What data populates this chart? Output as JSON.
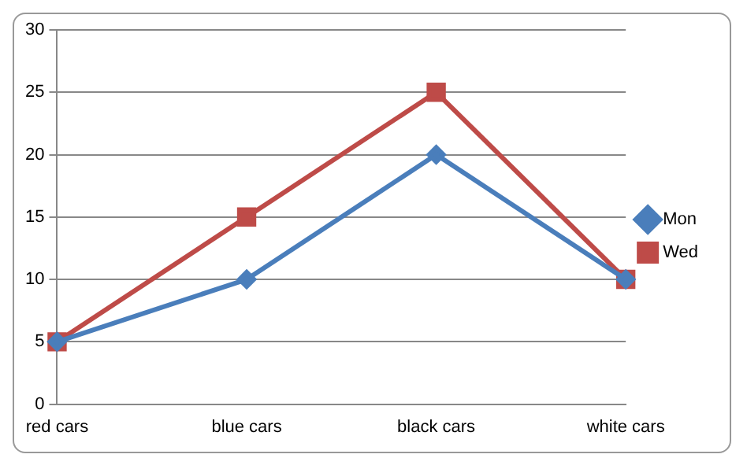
{
  "chart_data": {
    "type": "line",
    "categories": [
      "red cars",
      "blue cars",
      "black cars",
      "white cars"
    ],
    "series": [
      {
        "name": "Mon",
        "color": "#4a7ebb",
        "marker": "diamond",
        "values": [
          5,
          10,
          20,
          10
        ]
      },
      {
        "name": "Wed",
        "color": "#be4b48",
        "marker": "square",
        "values": [
          5,
          15,
          25,
          10
        ]
      }
    ],
    "ylim": [
      0,
      30
    ],
    "yticks": [
      0,
      5,
      10,
      15,
      20,
      25,
      30
    ],
    "grid": "y",
    "legend": "right"
  }
}
